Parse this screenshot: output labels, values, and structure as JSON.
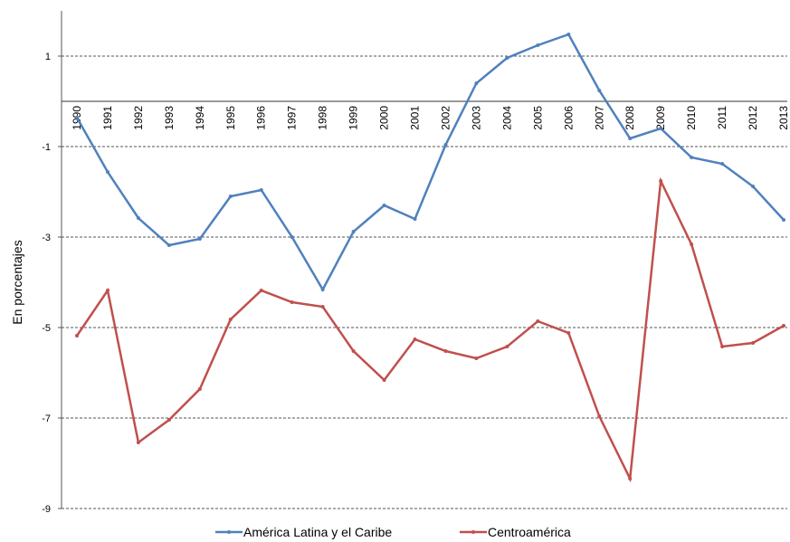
{
  "chart_data": {
    "type": "line",
    "y_label": "En porcentajes",
    "categories": [
      "1990",
      "1991",
      "1992",
      "1993",
      "1994",
      "1995",
      "1996",
      "1997",
      "1998",
      "1999",
      "2000",
      "2001",
      "2002",
      "2003",
      "2004",
      "2005",
      "2006",
      "2007",
      "2008",
      "2009",
      "2010",
      "2011",
      "2012",
      "2013"
    ],
    "series": [
      {
        "name": "América Latina y el Caribe",
        "color": "#4f81bd",
        "values": [
          -0.36,
          -1.56,
          -2.58,
          -3.18,
          -3.04,
          -2.1,
          -1.96,
          -3.0,
          -4.16,
          -2.88,
          -2.3,
          -2.6,
          -0.96,
          0.4,
          0.96,
          1.24,
          1.48,
          0.24,
          -0.82,
          -0.6,
          -1.24,
          -1.38,
          -1.88,
          -2.62
        ]
      },
      {
        "name": "Centroamérica",
        "color": "#c0504d",
        "values": [
          -5.18,
          -4.18,
          -7.54,
          -7.04,
          -6.36,
          -4.82,
          -4.18,
          -4.44,
          -4.54,
          -5.52,
          -6.16,
          -5.26,
          -5.52,
          -5.68,
          -5.42,
          -4.86,
          -5.12,
          -6.96,
          -8.34,
          -1.76,
          -3.16,
          -5.42,
          -5.34,
          -4.96
        ]
      }
    ],
    "ylim": [
      -9,
      2
    ],
    "yticks": [
      -9,
      -7,
      -5,
      -3,
      -1,
      1
    ],
    "grid": true,
    "legend": "bottom"
  }
}
